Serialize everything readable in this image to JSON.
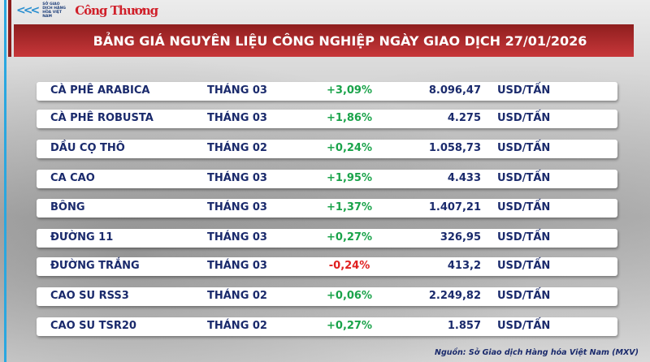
{
  "header": {
    "org": "SỞ GIAO DỊCH HÀNG HÓA VIỆT NAM",
    "publisher": "Công Thương",
    "title": "BẢNG GIÁ NGUYÊN LIỆU CÔNG NGHIỆP NGÀY GIAO DỊCH 27/01/2026"
  },
  "rows": [
    {
      "name": "CÀ PHÊ ARABICA",
      "month": "THÁNG 03",
      "change": "+3,09%",
      "price": "8.096,47",
      "unit": "USD/TẤN",
      "dir": "up"
    },
    {
      "name": "CÀ PHÊ ROBUSTA",
      "month": "THÁNG 03",
      "change": "+1,86%",
      "price": "4.275",
      "unit": "USD/TẤN",
      "dir": "up"
    },
    {
      "name": "DẦU CỌ THÔ",
      "month": "THÁNG 02",
      "change": "+0,24%",
      "price": "1.058,73",
      "unit": "USD/TẤN",
      "dir": "up"
    },
    {
      "name": "CA CAO",
      "month": "THÁNG 03",
      "change": "+1,95%",
      "price": "4.433",
      "unit": "USD/TẤN",
      "dir": "up"
    },
    {
      "name": "BÔNG",
      "month": "THÁNG 03",
      "change": "+1,37%",
      "price": "1.407,21",
      "unit": "USD/TẤN",
      "dir": "up"
    },
    {
      "name": "ĐƯỜNG 11",
      "month": "THÁNG 03",
      "change": "+0,27%",
      "price": "326,95",
      "unit": "USD/TẤN",
      "dir": "up"
    },
    {
      "name": "ĐƯỜNG TRẮNG",
      "month": "THÁNG 03",
      "change": "-0,24%",
      "price": "413,2",
      "unit": "USD/TẤN",
      "dir": "down"
    },
    {
      "name": "CAO SU RSS3",
      "month": "THÁNG 02",
      "change": "+0,06%",
      "price": "2.249,82",
      "unit": "USD/TẤN",
      "dir": "up"
    },
    {
      "name": "CAO SU TSR20",
      "month": "THÁNG 02",
      "change": "+0,27%",
      "price": "1.857",
      "unit": "USD/TẤN",
      "dir": "up"
    }
  ],
  "colors": {
    "up": "#1aa34a",
    "down": "#e02020",
    "title_bg": "#b02a2c",
    "text": "#1a2a6c"
  },
  "footer": {
    "source": "Nguồn: Sở Giao dịch Hàng hóa Việt Nam (MXV)"
  }
}
